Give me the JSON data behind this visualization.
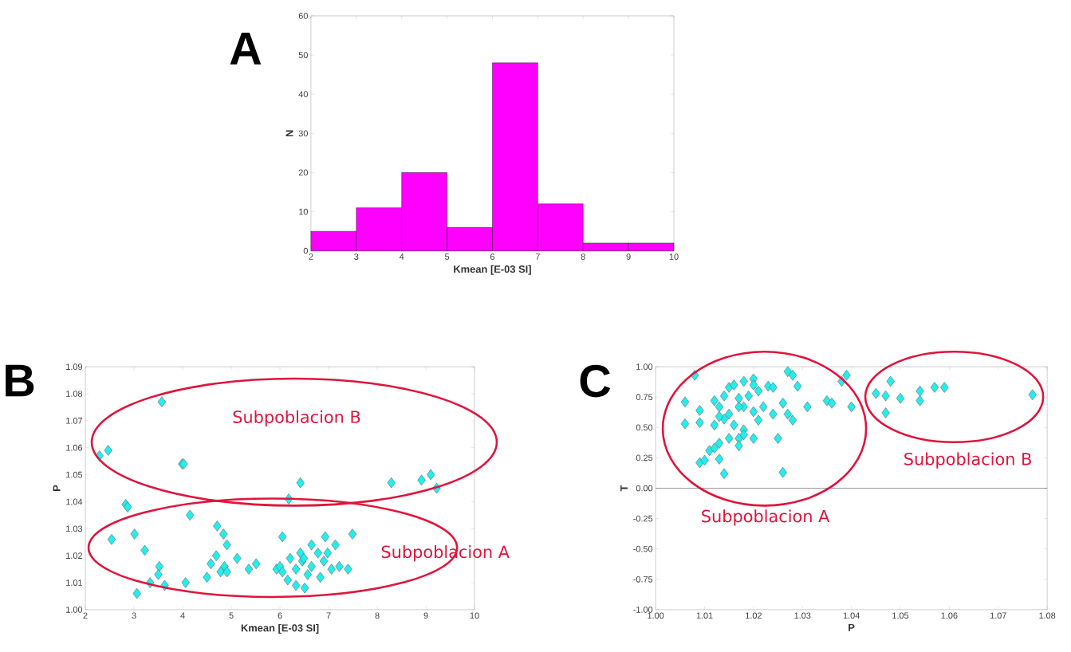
{
  "chart_data": [
    {
      "type": "histogram",
      "title": "A",
      "xlabel": "Kmean [E-03 SI]",
      "ylabel": "N",
      "color": "#ff00ff",
      "bins": [
        2,
        3,
        4,
        5,
        6,
        7,
        8,
        9,
        10
      ],
      "values": [
        5,
        11,
        20,
        6,
        48,
        12,
        2,
        2
      ],
      "xlim": [
        2,
        10
      ],
      "ylim": [
        0,
        60
      ],
      "xticks": [
        2,
        3,
        4,
        5,
        6,
        7,
        8,
        9,
        10
      ],
      "yticks": [
        0,
        10,
        20,
        30,
        40,
        50,
        60
      ]
    },
    {
      "type": "scatter",
      "title": "B",
      "xlabel": "Kmean [E-03 SI]",
      "ylabel": "P",
      "color": "#22eeee",
      "marker": "diamond",
      "annotations": [
        "Subpoblacion B",
        "Subpoblacion A"
      ],
      "x": [
        2.29,
        2.47,
        3.57,
        3.99,
        4.02,
        2.83,
        2.87,
        4.15,
        2.54,
        3.01,
        3.22,
        3.52,
        3.5,
        3.33,
        3.63,
        3.06,
        4.06,
        4.5,
        4.71,
        4.84,
        4.91,
        4.69,
        4.58,
        4.86,
        4.78,
        4.91,
        5.12,
        5.36,
        5.51,
        5.93,
        6.05,
        6.42,
        6.18,
        8.29,
        8.91,
        9.1,
        9.22,
        7.49,
        6.93,
        7.14,
        6.65,
        6.78,
        6.42,
        6.21,
        6.0,
        6.05,
        6.16,
        6.33,
        6.51,
        6.57,
        6.83,
        7.06,
        7.22,
        7.4,
        6.46,
        6.9,
        6.65,
        6.33,
        6.98,
        6.49
      ],
      "values": [
        1.057,
        1.059,
        1.077,
        1.054,
        1.054,
        1.039,
        1.038,
        1.035,
        1.026,
        1.028,
        1.022,
        1.016,
        1.013,
        1.01,
        1.009,
        1.006,
        1.01,
        1.012,
        1.031,
        1.028,
        1.024,
        1.02,
        1.017,
        1.016,
        1.014,
        1.014,
        1.019,
        1.015,
        1.017,
        1.015,
        1.027,
        1.047,
        1.041,
        1.047,
        1.048,
        1.05,
        1.045,
        1.028,
        1.027,
        1.024,
        1.024,
        1.021,
        1.021,
        1.019,
        1.016,
        1.014,
        1.011,
        1.009,
        1.008,
        1.013,
        1.012,
        1.015,
        1.016,
        1.015,
        1.018,
        1.018,
        1.016,
        1.015,
        1.021,
        1.019
      ],
      "xlim": [
        2,
        10
      ],
      "ylim": [
        1.0,
        1.09
      ],
      "xticks": [
        2,
        3,
        4,
        5,
        6,
        7,
        8,
        9,
        10
      ],
      "yticks": [
        {
          "value": 1.0,
          "label": "1.00"
        },
        {
          "value": 1.01,
          "label": "1.01"
        },
        {
          "value": 1.02,
          "label": "1.02"
        },
        {
          "value": 1.03,
          "label": "1.03"
        },
        {
          "value": 1.04,
          "label": "1.04"
        },
        {
          "value": 1.05,
          "label": "1.05"
        },
        {
          "value": 1.06,
          "label": "1.06"
        },
        {
          "value": 1.07,
          "label": "1.07"
        },
        {
          "value": 1.08,
          "label": "1.08"
        },
        {
          "value": 1.09,
          "label": "1.09"
        }
      ]
    },
    {
      "type": "scatter",
      "title": "C",
      "xlabel": "P",
      "ylabel": "T",
      "color": "#22eeee",
      "marker": "diamond",
      "annotations": [
        "Subpoblacion A",
        "Subpoblacion B"
      ],
      "ref_lines": [
        {
          "axis": "y",
          "value": 0,
          "color": "#000000"
        }
      ],
      "x": [
        1.008,
        1.006,
        1.006,
        1.009,
        1.009,
        1.009,
        1.01,
        1.011,
        1.014,
        1.013,
        1.012,
        1.013,
        1.012,
        1.012,
        1.013,
        1.014,
        1.015,
        1.016,
        1.018,
        1.02,
        1.02,
        1.021,
        1.023,
        1.024,
        1.027,
        1.028,
        1.029,
        1.031,
        1.026,
        1.027,
        1.028,
        1.024,
        1.022,
        1.021,
        1.02,
        1.018,
        1.017,
        1.015,
        1.014,
        1.016,
        1.018,
        1.017,
        1.015,
        1.017,
        1.018,
        1.02,
        1.025,
        1.026,
        1.017,
        1.019,
        1.035,
        1.036,
        1.038,
        1.039,
        1.04,
        1.013,
        1.045,
        1.048,
        1.047,
        1.05,
        1.047,
        1.054,
        1.054,
        1.057,
        1.059,
        1.077
      ],
      "values": [
        0.93,
        0.71,
        0.53,
        0.64,
        0.54,
        0.21,
        0.23,
        0.31,
        0.12,
        0.24,
        0.33,
        0.37,
        0.52,
        0.72,
        0.67,
        0.76,
        0.83,
        0.85,
        0.88,
        0.9,
        0.85,
        0.8,
        0.84,
        0.83,
        0.96,
        0.93,
        0.84,
        0.67,
        0.7,
        0.61,
        0.56,
        0.61,
        0.67,
        0.56,
        0.63,
        0.67,
        0.67,
        0.61,
        0.57,
        0.52,
        0.48,
        0.41,
        0.41,
        0.35,
        0.44,
        0.41,
        0.41,
        0.13,
        0.74,
        0.76,
        0.72,
        0.7,
        0.88,
        0.93,
        0.67,
        0.59,
        0.78,
        0.88,
        0.76,
        0.74,
        0.62,
        0.8,
        0.72,
        0.83,
        0.83,
        0.77
      ],
      "xlim": [
        1.0,
        1.08
      ],
      "ylim": [
        -1.0,
        1.0
      ],
      "xticks": [
        {
          "value": 1.0,
          "label": "1.00"
        },
        {
          "value": 1.01,
          "label": "1.01"
        },
        {
          "value": 1.02,
          "label": "1.02"
        },
        {
          "value": 1.03,
          "label": "1.03"
        },
        {
          "value": 1.04,
          "label": "1.04"
        },
        {
          "value": 1.05,
          "label": "1.05"
        },
        {
          "value": 1.06,
          "label": "1.06"
        },
        {
          "value": 1.07,
          "label": "1.07"
        },
        {
          "value": 1.08,
          "label": "1.08"
        }
      ],
      "yticks": [
        {
          "value": -1.0,
          "label": "-1.00"
        },
        {
          "value": -0.75,
          "label": "-0.75"
        },
        {
          "value": -0.5,
          "label": "-0.50"
        },
        {
          "value": -0.25,
          "label": "-0.25"
        },
        {
          "value": 0,
          "label": "0.00"
        },
        {
          "value": 0.25,
          "label": "0.25"
        },
        {
          "value": 0.5,
          "label": "0.50"
        },
        {
          "value": 0.75,
          "label": "0.75"
        },
        {
          "value": 1.0,
          "label": "1.00"
        }
      ]
    }
  ]
}
